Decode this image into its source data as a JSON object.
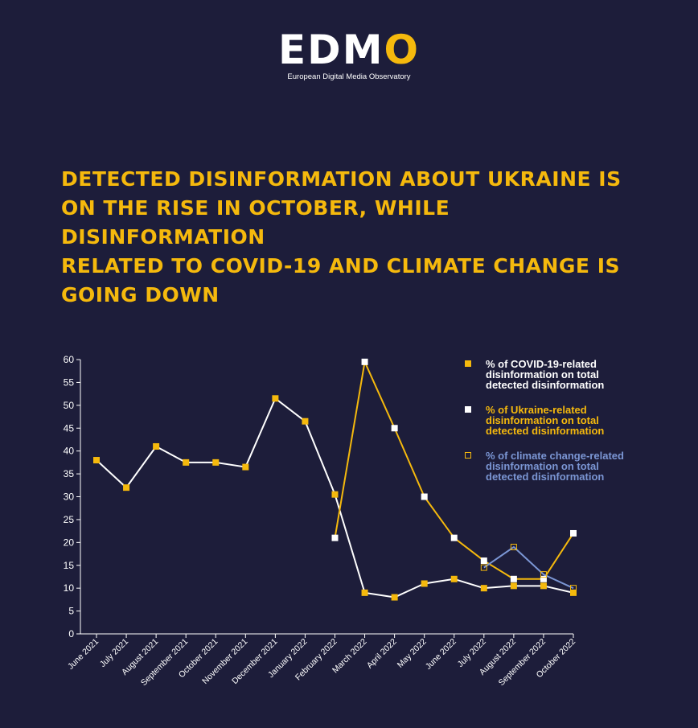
{
  "logo": {
    "word_main": "EDM",
    "word_accent": "O",
    "subtitle": "European Digital Media Observatory"
  },
  "title": "DETECTED DISINFORMATION ABOUT UKRAINE IS\nON THE RISE IN OCTOBER, WHILE DISINFORMATION\nRELATED TO  COVID-19 AND CLIMATE CHANGE IS\nGOING DOWN",
  "colors": {
    "background": "#1d1d3a",
    "accent": "#f5b90d",
    "white": "#ffffff",
    "climate": "#7b96d4"
  },
  "legend": [
    {
      "text": "% of COVID-19-related\ndisinformation on total\ndetected disinformation",
      "color": "#ffffff",
      "swatch": "#f5b90d",
      "swatch_style": "filled"
    },
    {
      "text": "% of Ukraine-related\ndisinformation on total\ndetected disinformation",
      "color": "#f5b90d",
      "swatch": "#ffffff",
      "swatch_style": "filled"
    },
    {
      "text": "% of climate change-related\ndisinformation on total\ndetected disinformation",
      "color": "#7b96d4",
      "swatch": "#f5b90d",
      "swatch_style": "outline"
    }
  ],
  "chart_data": {
    "type": "line",
    "title": "",
    "xlabel": "",
    "ylabel": "",
    "ylim": [
      0,
      60
    ],
    "yticks": [
      0,
      5,
      10,
      15,
      20,
      25,
      30,
      35,
      40,
      45,
      50,
      55,
      60
    ],
    "categories": [
      "June 2021",
      "July 2021",
      "August 2021",
      "September 2021",
      "October 2021",
      "November 2021",
      "December 2021",
      "January 2022",
      "February 2022",
      "March 2022",
      "April 2022",
      "May 2022",
      "June 2022",
      "July 2022",
      "August 2022",
      "September 2022",
      "October 2022"
    ],
    "legend_position": "top-right",
    "grid": false,
    "series": [
      {
        "name": "% of COVID-19-related disinformation on total detected disinformation",
        "line_color": "#ffffff",
        "marker_fill": "#f5b90d",
        "marker_stroke": "#f5b90d",
        "values": [
          38,
          32,
          41,
          37.5,
          37.5,
          36.5,
          51.5,
          46.5,
          30.5,
          9,
          8,
          11,
          12,
          10,
          10.5,
          10.5,
          9
        ]
      },
      {
        "name": "% of Ukraine-related disinformation on total detected disinformation",
        "line_color": "#f5b90d",
        "marker_fill": "#ffffff",
        "marker_stroke": "#ffffff",
        "values": [
          null,
          null,
          null,
          null,
          null,
          null,
          null,
          null,
          21,
          59.5,
          45,
          30,
          21,
          16,
          12,
          12,
          22
        ]
      },
      {
        "name": "% of climate change-related disinformation on total detected disinformation",
        "line_color": "#7b96d4",
        "marker_fill": "none",
        "marker_stroke": "#f5b90d",
        "values": [
          null,
          null,
          null,
          null,
          null,
          null,
          null,
          null,
          null,
          null,
          null,
          null,
          null,
          14.5,
          19,
          13,
          10
        ]
      }
    ]
  }
}
